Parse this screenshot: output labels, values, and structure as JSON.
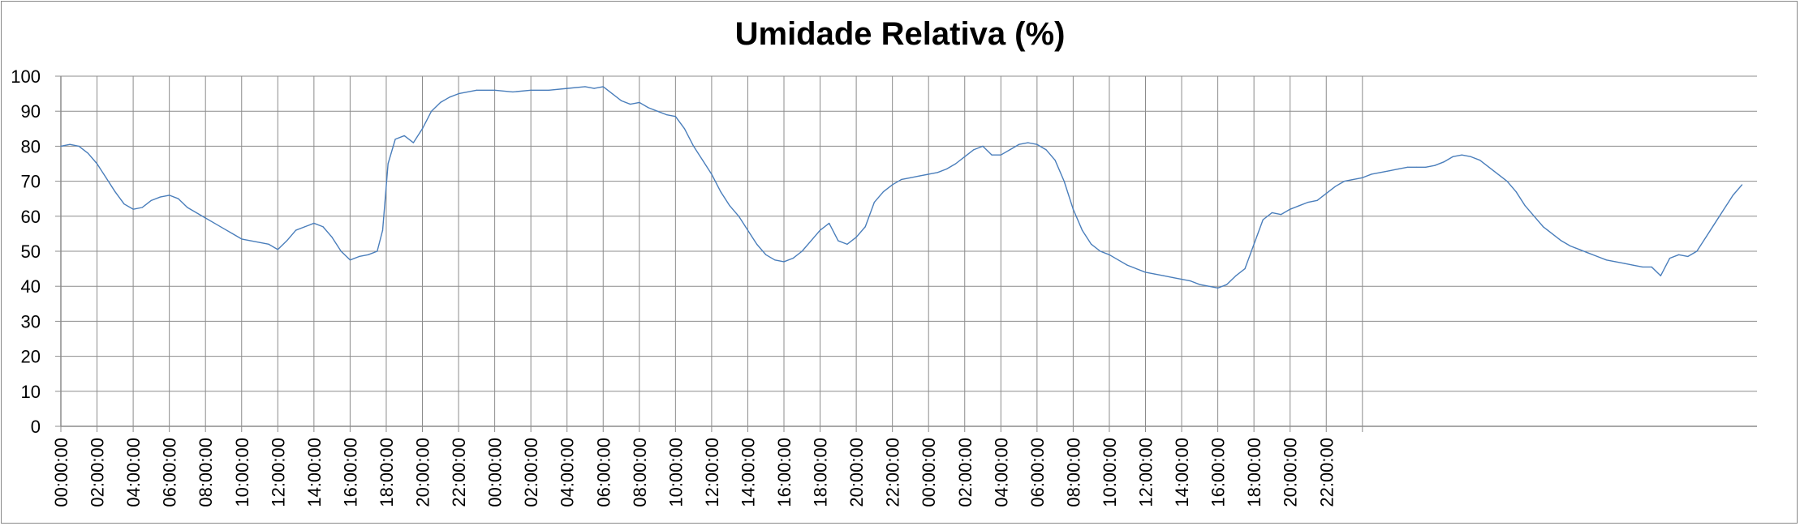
{
  "chart_data": {
    "type": "line",
    "title": "Umidade Relativa (%)",
    "xlabel": "",
    "ylabel": "",
    "ylim": [
      0,
      100
    ],
    "y_ticks": [
      0,
      10,
      20,
      30,
      40,
      50,
      60,
      70,
      80,
      90,
      100
    ],
    "x_tick_labels": [
      "00:00:00",
      "02:00:00",
      "04:00:00",
      "06:00:00",
      "08:00:00",
      "10:00:00",
      "12:00:00",
      "14:00:00",
      "16:00:00",
      "18:00:00",
      "20:00:00",
      "22:00:00",
      "00:00:00",
      "02:00:00",
      "04:00:00",
      "06:00:00",
      "08:00:00",
      "10:00:00",
      "12:00:00",
      "14:00:00",
      "16:00:00",
      "18:00:00",
      "20:00:00",
      "22:00:00",
      "00:00:00",
      "02:00:00",
      "04:00:00",
      "06:00:00",
      "08:00:00",
      "10:00:00",
      "12:00:00",
      "14:00:00",
      "16:00:00",
      "18:00:00",
      "20:00:00",
      "22:00:00"
    ],
    "x_unit": "hours elapsed",
    "xlim": [
      0,
      94
    ],
    "grid": true,
    "legend": "none",
    "series": [
      {
        "color": "#4a7ebb",
        "points": [
          [
            0,
            80
          ],
          [
            0.5,
            80.5
          ],
          [
            1,
            80
          ],
          [
            1.5,
            78
          ],
          [
            2,
            75
          ],
          [
            2.5,
            71
          ],
          [
            3,
            67
          ],
          [
            3.5,
            63.5
          ],
          [
            4,
            62
          ],
          [
            4.5,
            62.5
          ],
          [
            5,
            64.5
          ],
          [
            5.5,
            65.5
          ],
          [
            6,
            66
          ],
          [
            6.5,
            65
          ],
          [
            7,
            62.5
          ],
          [
            7.5,
            61
          ],
          [
            8,
            59.5
          ],
          [
            8.5,
            58
          ],
          [
            9,
            56.5
          ],
          [
            9.5,
            55
          ],
          [
            10,
            53.5
          ],
          [
            10.5,
            53
          ],
          [
            11,
            52.5
          ],
          [
            11.5,
            52
          ],
          [
            12,
            50.5
          ],
          [
            12.5,
            53
          ],
          [
            13,
            56
          ],
          [
            13.5,
            57
          ],
          [
            14,
            58
          ],
          [
            14.5,
            57
          ],
          [
            15,
            54
          ],
          [
            15.5,
            50
          ],
          [
            16,
            47.5
          ],
          [
            16.5,
            48.5
          ],
          [
            17,
            49
          ],
          [
            17.5,
            50
          ],
          [
            17.8,
            56
          ],
          [
            18.1,
            75
          ],
          [
            18.5,
            82
          ],
          [
            19,
            83
          ],
          [
            19.5,
            81
          ],
          [
            20,
            85
          ],
          [
            20.5,
            90
          ],
          [
            21,
            92.5
          ],
          [
            21.5,
            94
          ],
          [
            22,
            95
          ],
          [
            22.5,
            95.5
          ],
          [
            23,
            96
          ],
          [
            24,
            96
          ],
          [
            25,
            95.5
          ],
          [
            26,
            96
          ],
          [
            27,
            96
          ],
          [
            28,
            96.5
          ],
          [
            29,
            97
          ],
          [
            29.5,
            96.5
          ],
          [
            30,
            97
          ],
          [
            30.5,
            95
          ],
          [
            31,
            93
          ],
          [
            31.5,
            92
          ],
          [
            32,
            92.5
          ],
          [
            32.5,
            91
          ],
          [
            33,
            90
          ],
          [
            33.5,
            89
          ],
          [
            34,
            88.5
          ],
          [
            34.5,
            85
          ],
          [
            35,
            80
          ],
          [
            35.5,
            76
          ],
          [
            36,
            72
          ],
          [
            36.5,
            67
          ],
          [
            37,
            63
          ],
          [
            37.5,
            60
          ],
          [
            38,
            56
          ],
          [
            38.5,
            52
          ],
          [
            39,
            49
          ],
          [
            39.5,
            47.5
          ],
          [
            40,
            47
          ],
          [
            40.5,
            48
          ],
          [
            41,
            50
          ],
          [
            41.5,
            53
          ],
          [
            42,
            56
          ],
          [
            42.5,
            58
          ],
          [
            43,
            53
          ],
          [
            43.5,
            52
          ],
          [
            44,
            54
          ],
          [
            44.5,
            57
          ],
          [
            45,
            64
          ],
          [
            45.5,
            67
          ],
          [
            46,
            69
          ],
          [
            46.5,
            70.5
          ],
          [
            47,
            71
          ],
          [
            47.5,
            71.5
          ],
          [
            48,
            72
          ],
          [
            48.5,
            72.5
          ],
          [
            49,
            73.5
          ],
          [
            49.5,
            75
          ],
          [
            50,
            77
          ],
          [
            50.5,
            79
          ],
          [
            51,
            80
          ],
          [
            51.5,
            77.5
          ],
          [
            52,
            77.5
          ],
          [
            52.5,
            79
          ],
          [
            53,
            80.5
          ],
          [
            53.5,
            81
          ],
          [
            54,
            80.5
          ],
          [
            54.5,
            79
          ],
          [
            55,
            76
          ],
          [
            55.5,
            70
          ],
          [
            56,
            62
          ],
          [
            56.5,
            56
          ],
          [
            57,
            52
          ],
          [
            57.5,
            50
          ],
          [
            58,
            49
          ],
          [
            58.5,
            47.5
          ],
          [
            59,
            46
          ],
          [
            59.5,
            45
          ],
          [
            60,
            44
          ],
          [
            60.5,
            43.5
          ],
          [
            61,
            43
          ],
          [
            61.5,
            42.5
          ],
          [
            62,
            42
          ],
          [
            62.5,
            41.5
          ],
          [
            63,
            40.5
          ],
          [
            63.5,
            40
          ],
          [
            64,
            39.5
          ],
          [
            64.5,
            40.5
          ],
          [
            65,
            43
          ],
          [
            65.5,
            45
          ],
          [
            66,
            52
          ],
          [
            66.5,
            59
          ],
          [
            67,
            61
          ],
          [
            67.5,
            60.5
          ],
          [
            68,
            62
          ],
          [
            68.5,
            63
          ],
          [
            69,
            64
          ],
          [
            69.5,
            64.5
          ],
          [
            70,
            66.5
          ],
          [
            70.5,
            68.5
          ],
          [
            71,
            70
          ],
          [
            71.5,
            70.5
          ],
          [
            72,
            71
          ],
          [
            72.5,
            72
          ],
          [
            73,
            72.5
          ],
          [
            73.5,
            73
          ],
          [
            74,
            73.5
          ],
          [
            74.5,
            74
          ],
          [
            75,
            74
          ],
          [
            75.5,
            74
          ],
          [
            76,
            74.5
          ],
          [
            76.5,
            75.5
          ],
          [
            77,
            77
          ],
          [
            77.5,
            77.5
          ],
          [
            78,
            77
          ],
          [
            78.5,
            76
          ],
          [
            79,
            74
          ],
          [
            79.5,
            72
          ],
          [
            80,
            70
          ],
          [
            80.5,
            67
          ],
          [
            81,
            63
          ],
          [
            81.5,
            60
          ],
          [
            82,
            57
          ],
          [
            82.5,
            55
          ],
          [
            83,
            53
          ],
          [
            83.5,
            51.5
          ],
          [
            84,
            50.5
          ],
          [
            84.5,
            49.5
          ],
          [
            85,
            48.5
          ],
          [
            85.5,
            47.5
          ],
          [
            86,
            47
          ],
          [
            86.5,
            46.5
          ],
          [
            87,
            46
          ],
          [
            87.5,
            45.5
          ],
          [
            88,
            45.5
          ],
          [
            88.5,
            43
          ],
          [
            89,
            48
          ],
          [
            89.5,
            49
          ],
          [
            90,
            48.5
          ],
          [
            90.5,
            50
          ],
          [
            91,
            54
          ],
          [
            91.5,
            58
          ],
          [
            92,
            62
          ],
          [
            92.5,
            66
          ],
          [
            93,
            69
          ]
        ]
      }
    ]
  }
}
